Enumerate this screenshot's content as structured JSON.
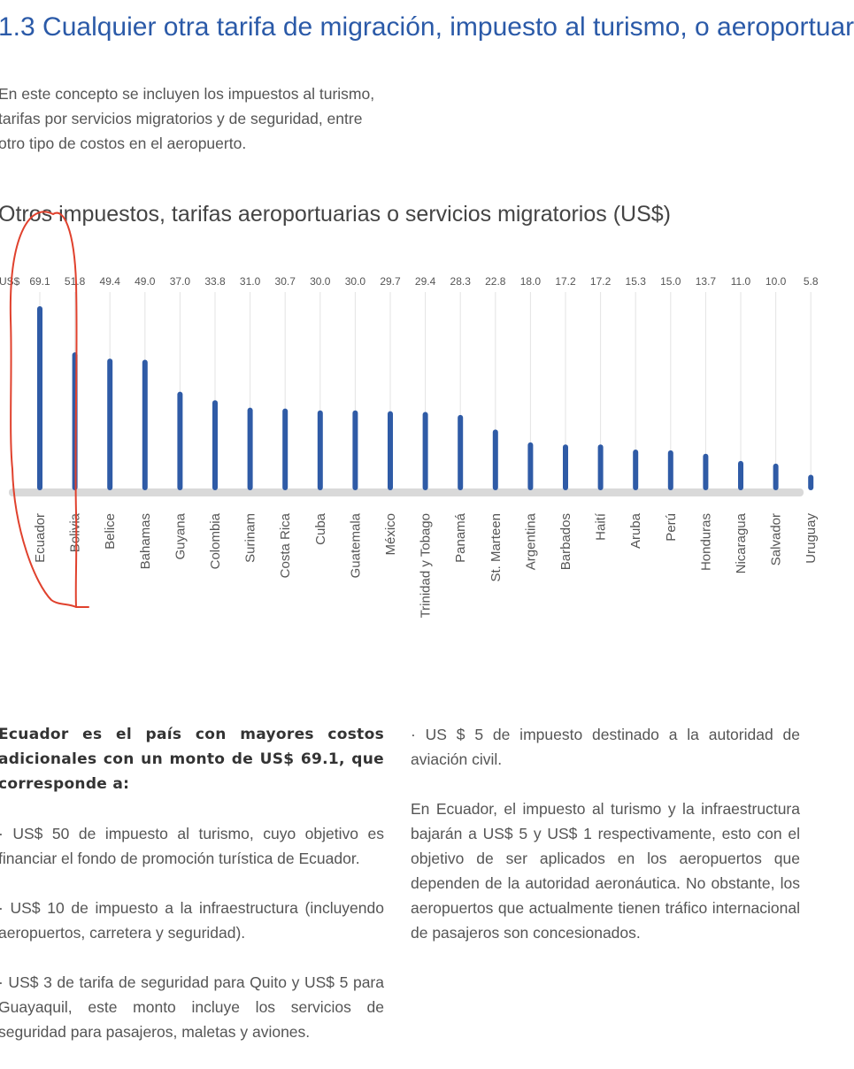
{
  "section": {
    "heading": "1.3 Cualquier otra tarifa de migración, impuesto al turismo, o aeroportuar",
    "intro": "En este concepto se incluyen los impuestos al turismo, tarifas por servicios migratorios y de seguridad, entre otro tipo de costos en el aeropuerto."
  },
  "chart_data": {
    "type": "bar",
    "title": "Otros impuestos, tarifas aeroportuarias o servicios migratorios (US$)",
    "unit_label": "US$",
    "categories": [
      "Ecuador",
      "Bolivia",
      "Belice",
      "Bahamas",
      "Guyana",
      "Colombia",
      "Surinam",
      "Costa Rica",
      "Cuba",
      "Guatemala",
      "México",
      "Trinidad y Tobago",
      "Panamá",
      "St. Marteen",
      "Argentina",
      "Barbados",
      "Haití",
      "Aruba",
      "Perú",
      "Honduras",
      "Nicaragua",
      "Salvador",
      "Uruguay"
    ],
    "values": [
      69.1,
      51.8,
      49.4,
      49.0,
      37.0,
      33.8,
      31.0,
      30.7,
      30.0,
      30.0,
      29.7,
      29.4,
      28.3,
      22.8,
      18.0,
      17.2,
      17.2,
      15.3,
      15.0,
      13.7,
      11.0,
      10.0,
      5.8
    ],
    "value_labels": [
      "69.1",
      "51.8",
      "49.4",
      "49.0",
      "37.0",
      "33.8",
      "31.0",
      "30.7",
      "30.0",
      "30.0",
      "29.7",
      "29.4",
      "28.3",
      "22.8",
      "18.0",
      "17.2",
      "17.2",
      "15.3",
      "15.0",
      "13.7",
      "11.0",
      "10.0",
      "5.8"
    ],
    "ylim": [
      0,
      69.1
    ],
    "bar_color": "#2f5ba6",
    "xlabel": "",
    "ylabel": ""
  },
  "annotation": {
    "color": "#e0412d"
  },
  "left_column": {
    "lead": "Ecuador es el país con mayores costos adicionales con un monto de US$ 69.1, que corresponde a:",
    "items": [
      "· US$ 50 de impuesto al turismo, cuyo objetivo es financiar el fondo de promoción turística de Ecuador.",
      "· US$ 10 de impuesto a la infraestructura (incluyendo aeropuertos, carretera y seguridad).",
      "· US$ 3 de tarifa de seguridad para Quito y US$ 5 para Guayaquil, este monto incluye los servicios de seguridad para pasajeros, maletas y aviones."
    ]
  },
  "right_column": {
    "item": "· US $ 5 de impuesto destinado a la autoridad de aviación civil.",
    "paragraph": "En Ecuador, el impuesto al turismo y la infraestructura bajarán a US$ 5 y US$ 1 respectivamente, esto con el objetivo de ser aplicados en los aeropuertos que dependen de la autoridad aeronáutica. No obstante, los aeropuertos que actualmente tienen tráfico internacional de pasajeros son concesionados."
  }
}
